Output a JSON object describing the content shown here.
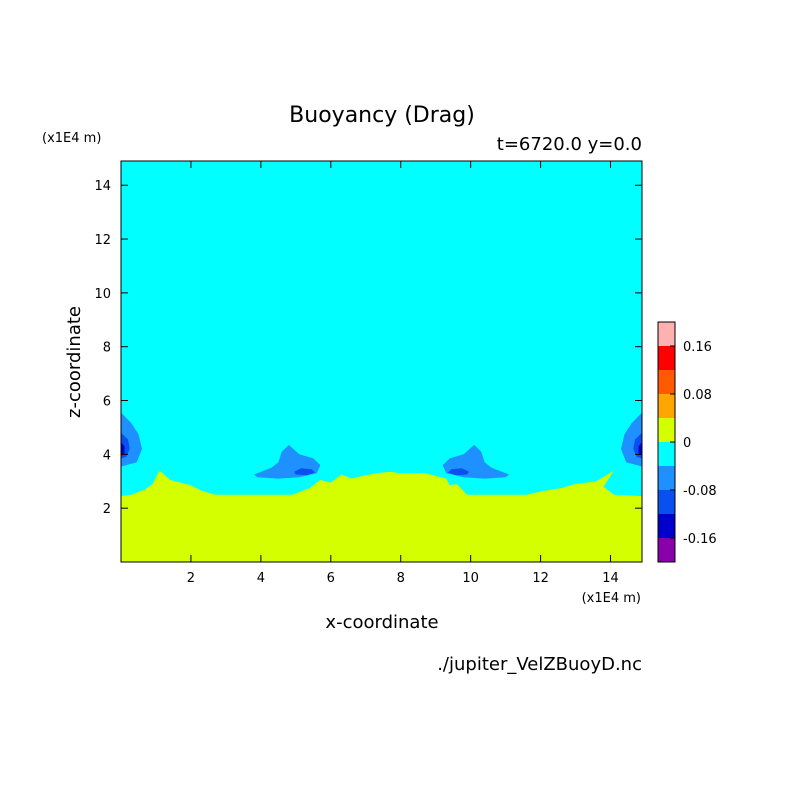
{
  "chart_data": {
    "type": "heatmap",
    "title": "Buoyancy (Drag)",
    "subtitle": "t=6720.0 y=0.0",
    "xlabel": "x-coordinate",
    "ylabel": "z-coordinate",
    "x_unit": "(x1E4 m)",
    "y_unit": "(x1E4 m)",
    "xlim": [
      0,
      14.9
    ],
    "ylim": [
      0,
      14.9
    ],
    "x_ticks": [
      2,
      4,
      6,
      8,
      10,
      12,
      14
    ],
    "y_ticks": [
      2,
      4,
      6,
      8,
      10,
      12,
      14
    ],
    "source_file": "./jupiter_VelZBuoyD.nc",
    "grid": false,
    "legend_position": "right",
    "colorbar": {
      "range": [
        -0.2,
        0.2
      ],
      "levels": [
        -0.2,
        -0.16,
        -0.12,
        -0.08,
        -0.04,
        0,
        0.04,
        0.08,
        0.12,
        0.16,
        0.2
      ],
      "colors": [
        "#8800aa",
        "#0000cc",
        "#0a50f0",
        "#1e90ff",
        "#00ffff",
        "#d4ff00",
        "#ffa500",
        "#ff5a00",
        "#ff0000",
        "#ffb0b0"
      ],
      "tick_values": [
        0.16,
        0.08,
        0,
        -0.08,
        -0.16
      ],
      "tick_labels": [
        "0.16",
        "0.08",
        "0",
        "-0.08",
        "-0.16"
      ]
    },
    "background_fill": "#00ffff",
    "regions": [
      {
        "band": "0 to 0.04",
        "color": "#d4ff00",
        "points": [
          [
            0,
            0
          ],
          [
            14.9,
            0
          ],
          [
            14.9,
            2.45
          ],
          [
            14.1,
            2.5
          ],
          [
            13.8,
            2.8
          ],
          [
            14.1,
            3.4
          ],
          [
            13.6,
            3.0
          ],
          [
            13.0,
            2.9
          ],
          [
            12.6,
            2.75
          ],
          [
            12.1,
            2.65
          ],
          [
            11.6,
            2.5
          ],
          [
            9.9,
            2.5
          ],
          [
            9.6,
            2.9
          ],
          [
            9.4,
            2.85
          ],
          [
            9.3,
            3.1
          ],
          [
            9.0,
            3.2
          ],
          [
            8.7,
            3.3
          ],
          [
            8.0,
            3.3
          ],
          [
            7.7,
            3.35
          ],
          [
            7.3,
            3.3
          ],
          [
            6.9,
            3.2
          ],
          [
            6.6,
            3.1
          ],
          [
            6.3,
            3.25
          ],
          [
            6.0,
            2.95
          ],
          [
            5.7,
            3.05
          ],
          [
            5.4,
            2.75
          ],
          [
            5.1,
            2.6
          ],
          [
            4.9,
            2.5
          ],
          [
            2.7,
            2.5
          ],
          [
            2.3,
            2.65
          ],
          [
            2.0,
            2.85
          ],
          [
            1.7,
            2.95
          ],
          [
            1.4,
            3.05
          ],
          [
            1.1,
            3.4
          ],
          [
            0.9,
            2.9
          ],
          [
            0.7,
            2.7
          ],
          [
            0.3,
            2.5
          ],
          [
            0,
            2.45
          ]
        ]
      },
      {
        "band": "-0.08 to -0.04",
        "color": "#1e90ff",
        "points": [
          [
            0,
            5.55
          ],
          [
            0.3,
            5.15
          ],
          [
            0.5,
            4.75
          ],
          [
            0.6,
            4.2
          ],
          [
            0.45,
            3.7
          ],
          [
            0,
            3.55
          ]
        ]
      },
      {
        "band": "-0.12 to -0.08",
        "color": "#0a50f0",
        "points": [
          [
            0,
            4.8
          ],
          [
            0.2,
            4.55
          ],
          [
            0.25,
            4.2
          ],
          [
            0.15,
            3.9
          ],
          [
            0,
            3.85
          ]
        ]
      },
      {
        "band": "-0.16 to -0.12",
        "color": "#0000cc",
        "points": [
          [
            0,
            4.45
          ],
          [
            0.1,
            4.3
          ],
          [
            0.1,
            4.05
          ],
          [
            0,
            3.95
          ]
        ]
      },
      {
        "band": "-0.08 to -0.04",
        "color": "#1e90ff",
        "points": [
          [
            14.9,
            5.55
          ],
          [
            14.6,
            5.15
          ],
          [
            14.4,
            4.75
          ],
          [
            14.3,
            4.2
          ],
          [
            14.45,
            3.7
          ],
          [
            14.9,
            3.55
          ]
        ]
      },
      {
        "band": "-0.12 to -0.08",
        "color": "#0a50f0",
        "points": [
          [
            14.9,
            4.8
          ],
          [
            14.7,
            4.55
          ],
          [
            14.65,
            4.2
          ],
          [
            14.75,
            3.9
          ],
          [
            14.9,
            3.85
          ]
        ]
      },
      {
        "band": "-0.16 to -0.12",
        "color": "#0000cc",
        "points": [
          [
            14.9,
            4.45
          ],
          [
            14.8,
            4.3
          ],
          [
            14.8,
            4.05
          ],
          [
            14.9,
            3.95
          ]
        ]
      },
      {
        "band": "-0.08 to -0.04",
        "color": "#1e90ff",
        "points": [
          [
            3.8,
            3.25
          ],
          [
            4.3,
            3.5
          ],
          [
            4.5,
            3.7
          ],
          [
            4.6,
            4.1
          ],
          [
            4.8,
            4.35
          ],
          [
            5.1,
            4.0
          ],
          [
            5.5,
            3.85
          ],
          [
            5.7,
            3.6
          ],
          [
            5.6,
            3.3
          ],
          [
            5.1,
            3.15
          ],
          [
            4.5,
            3.1
          ],
          [
            3.9,
            3.15
          ]
        ]
      },
      {
        "band": "-0.12 to -0.08",
        "color": "#0a50f0",
        "points": [
          [
            4.95,
            3.35
          ],
          [
            5.15,
            3.48
          ],
          [
            5.45,
            3.45
          ],
          [
            5.55,
            3.32
          ],
          [
            5.3,
            3.22
          ],
          [
            5.0,
            3.25
          ]
        ]
      },
      {
        "band": "-0.08 to -0.04",
        "color": "#1e90ff",
        "points": [
          [
            11.1,
            3.25
          ],
          [
            10.6,
            3.5
          ],
          [
            10.4,
            3.7
          ],
          [
            10.3,
            4.1
          ],
          [
            10.1,
            4.35
          ],
          [
            9.8,
            4.0
          ],
          [
            9.4,
            3.85
          ],
          [
            9.2,
            3.6
          ],
          [
            9.3,
            3.3
          ],
          [
            9.8,
            3.15
          ],
          [
            10.4,
            3.1
          ],
          [
            11.0,
            3.15
          ]
        ]
      },
      {
        "band": "-0.12 to -0.08",
        "color": "#0a50f0",
        "points": [
          [
            9.95,
            3.35
          ],
          [
            9.75,
            3.48
          ],
          [
            9.45,
            3.45
          ],
          [
            9.35,
            3.32
          ],
          [
            9.6,
            3.22
          ],
          [
            9.9,
            3.25
          ]
        ]
      }
    ]
  }
}
